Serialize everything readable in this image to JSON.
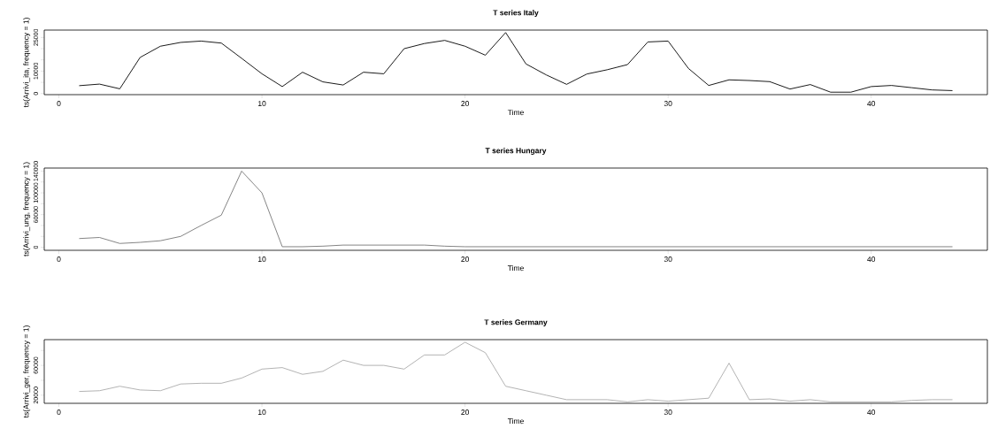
{
  "chart_data": [
    {
      "type": "line",
      "title": "T series Italy",
      "xlabel": "Time",
      "ylabel": "ts(Arrivi_ita, frequency = 1)",
      "x": [
        1,
        2,
        3,
        4,
        5,
        6,
        7,
        8,
        9,
        10,
        11,
        12,
        13,
        14,
        15,
        16,
        17,
        18,
        19,
        20,
        21,
        22,
        23,
        24,
        25,
        26,
        27,
        28,
        29,
        30,
        31,
        32,
        33,
        34,
        35,
        36,
        37,
        38,
        39,
        40,
        41,
        42,
        43,
        44
      ],
      "series": [
        {
          "color": "#000000",
          "values": [
            3500,
            4200,
            2100,
            16100,
            21100,
            22800,
            23400,
            22500,
            15700,
            8800,
            3100,
            9500,
            5200,
            3800,
            9500,
            8800,
            20000,
            22300,
            23700,
            21100,
            17100,
            27200,
            13200,
            8300,
            4100,
            8700,
            10600,
            12900,
            23000,
            23400,
            11200,
            3600,
            6100,
            5800,
            5300,
            2000,
            4000,
            600,
            600,
            3100,
            3600,
            2600,
            1600,
            1300
          ]
        }
      ],
      "xlim": [
        -0.72,
        45.72
      ],
      "xticks": [
        0,
        10,
        20,
        30,
        40
      ],
      "ylim": [
        -500,
        28300
      ],
      "yticks": [
        0,
        {
          "value": 5000,
          "label": null
        },
        10000,
        {
          "value": 15000,
          "label": null
        },
        {
          "value": 20000,
          "label": null
        },
        25000
      ]
    },
    {
      "type": "line",
      "title": "T series Hungary",
      "xlabel": "Time",
      "ylabel": "ts(Arrivi_ung, frequency = 1)",
      "x": [
        1,
        2,
        3,
        4,
        5,
        6,
        7,
        8,
        9,
        10,
        11,
        12,
        13,
        14,
        15,
        16,
        17,
        18,
        19,
        20,
        21,
        22,
        23,
        24,
        25,
        26,
        27,
        28,
        29,
        30,
        31,
        32,
        33,
        34,
        35,
        36,
        37,
        38,
        39,
        40,
        41,
        42,
        43,
        44
      ],
      "series": [
        {
          "color": "#777777",
          "values": [
            16000,
            18000,
            7000,
            9000,
            12000,
            20000,
            40000,
            59000,
            140000,
            100000,
            1000,
            1000,
            2000,
            4000,
            4000,
            4000,
            4000,
            4000,
            2000,
            1000,
            1000,
            1000,
            1000,
            1000,
            1000,
            1000,
            1000,
            1000,
            1000,
            1000,
            1000,
            1000,
            1000,
            1000,
            1000,
            1000,
            1000,
            1000,
            1000,
            1000,
            1000,
            1000,
            1000,
            1000
          ]
        }
      ],
      "xlim": [
        -0.72,
        45.72
      ],
      "xticks": [
        0,
        10,
        20,
        30,
        40
      ],
      "ylim": [
        -5600,
        145600
      ],
      "yticks": [
        0,
        {
          "value": 20000,
          "label": null
        },
        {
          "value": 40000,
          "label": null
        },
        60000,
        {
          "value": 80000,
          "label": null
        },
        100000,
        {
          "value": 120000,
          "label": null
        },
        140000
      ]
    },
    {
      "type": "line",
      "title": "T series Germany",
      "xlabel": "Time",
      "ylabel": "ts(Arrivi_ger, frequency = 1)",
      "x": [
        1,
        2,
        3,
        4,
        5,
        6,
        7,
        8,
        9,
        10,
        11,
        12,
        13,
        14,
        15,
        16,
        17,
        18,
        19,
        20,
        21,
        22,
        23,
        24,
        25,
        26,
        27,
        28,
        29,
        30,
        31,
        32,
        33,
        34,
        35,
        36,
        37,
        38,
        39,
        40,
        41,
        42,
        43,
        44
      ],
      "series": [
        {
          "color": "#aaaaaa",
          "values": [
            25000,
            26000,
            32000,
            27000,
            26000,
            35000,
            36000,
            36000,
            43000,
            55000,
            57000,
            48000,
            52000,
            67000,
            60000,
            60000,
            55000,
            74000,
            74000,
            91000,
            77000,
            32000,
            26000,
            20000,
            14000,
            14000,
            14000,
            11000,
            14000,
            12000,
            14000,
            16000,
            63000,
            14000,
            15000,
            12000,
            14000,
            11000,
            11000,
            11000,
            11000,
            13000,
            14000,
            14000
          ]
        }
      ],
      "xlim": [
        -0.72,
        45.72
      ],
      "xticks": [
        0,
        10,
        20,
        30,
        40
      ],
      "ylim": [
        9100,
        94500
      ],
      "yticks": [
        20000,
        {
          "value": 40000,
          "label": null
        },
        60000,
        {
          "value": 80000,
          "label": null
        }
      ]
    }
  ]
}
